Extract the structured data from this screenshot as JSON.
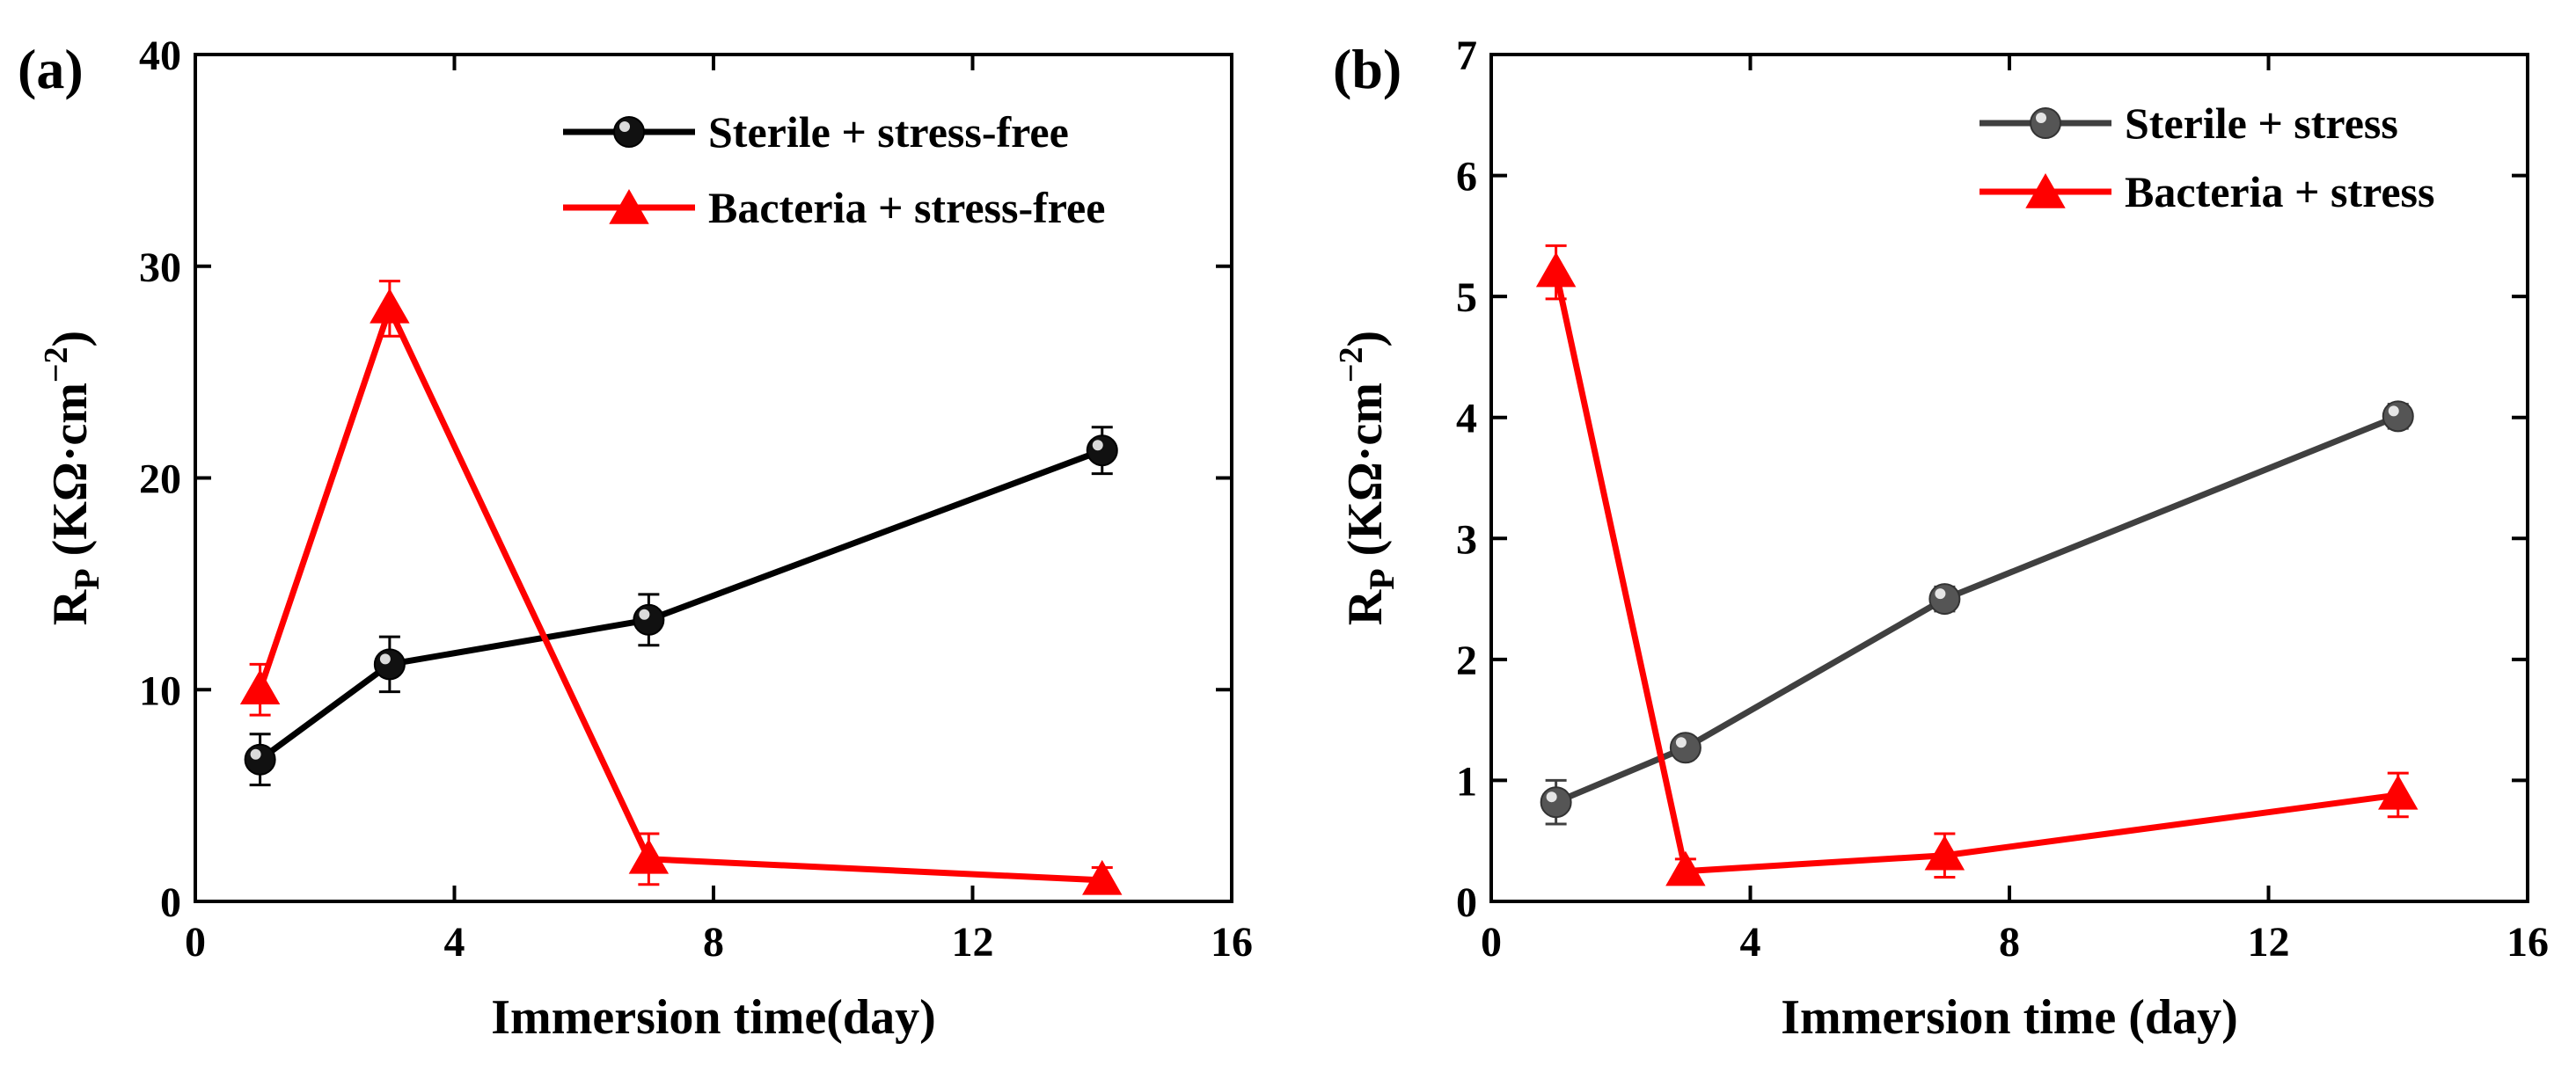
{
  "chart_data": [
    {
      "panel_label": "(a)",
      "type": "line",
      "xlabel": "Immersion time(day)",
      "ylabel": "R",
      "ylabel_sub": "P",
      "ylabel_unit": " (KΩ·cm",
      "ylabel_sup": "−2",
      "ylabel_close": ")",
      "xlim": [
        0,
        16
      ],
      "ylim": [
        0,
        40
      ],
      "xticks": [
        0,
        4,
        8,
        12,
        16
      ],
      "yticks": [
        0,
        10,
        20,
        30,
        40
      ],
      "grid": false,
      "legend_position": "top-right",
      "series": [
        {
          "name": "Sterile + stress-free",
          "color": "#000000",
          "marker": "sphere",
          "x": [
            1,
            3,
            7,
            14
          ],
          "y": [
            6.7,
            11.2,
            13.3,
            21.3
          ],
          "err": [
            1.2,
            1.3,
            1.2,
            1.1
          ]
        },
        {
          "name": "Bacteria + stress-free",
          "color": "#ff0000",
          "marker": "triangle",
          "x": [
            1,
            3,
            7,
            14
          ],
          "y": [
            10,
            28,
            2,
            1
          ],
          "err": [
            1.2,
            1.3,
            1.2,
            0.6
          ]
        }
      ]
    },
    {
      "panel_label": "(b)",
      "type": "line",
      "xlabel": "Immersion time (day)",
      "ylabel": "R",
      "ylabel_sub": "P",
      "ylabel_unit": " (KΩ·cm",
      "ylabel_sup": "−2",
      "ylabel_close": ")",
      "xlim": [
        0,
        16
      ],
      "ylim": [
        0,
        7
      ],
      "xticks": [
        0,
        4,
        8,
        12,
        16
      ],
      "yticks": [
        0,
        1,
        2,
        3,
        4,
        5,
        6,
        7
      ],
      "grid": false,
      "legend_position": "top-right",
      "series": [
        {
          "name": "Sterile + stress",
          "color": "#404040",
          "marker": "sphere",
          "x": [
            1,
            3,
            7,
            14
          ],
          "y": [
            0.82,
            1.27,
            2.5,
            4.01
          ],
          "err": [
            0.18,
            0.08,
            0.1,
            0.1
          ]
        },
        {
          "name": "Bacteria + stress",
          "color": "#ff0000",
          "marker": "triangle",
          "x": [
            1,
            3,
            7,
            14
          ],
          "y": [
            5.2,
            0.25,
            0.38,
            0.88
          ],
          "err": [
            0.22,
            0.1,
            0.18,
            0.18
          ]
        }
      ]
    }
  ]
}
